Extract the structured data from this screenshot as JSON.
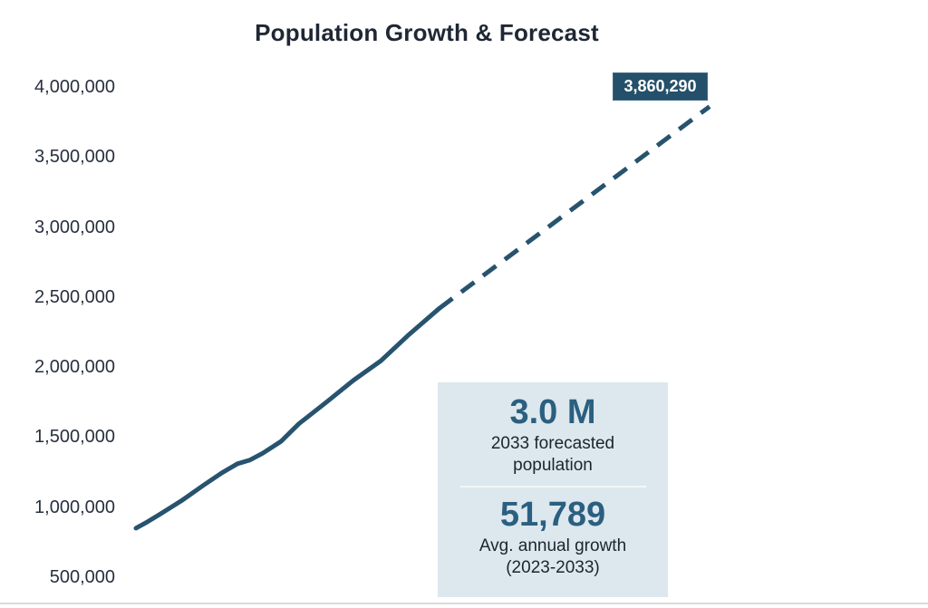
{
  "title": "Population Growth & Forecast",
  "callout": {
    "value": "3,860,290"
  },
  "stats_card": {
    "stat1_value": "3.0 M",
    "stat1_label": "2033 forecasted population",
    "stat2_value": "51,789",
    "stat2_label": "Avg. annual growth (2023-2033)"
  },
  "colors": {
    "line": "#27536e",
    "callout_bg": "#25506b",
    "stat_value": "#2b5f80",
    "card_bg": "#dce8ee",
    "title_text": "#1f2734",
    "axis_text": "#28303f",
    "baseline": "#dadada"
  },
  "chart_data": {
    "type": "line",
    "title": "Population Growth & Forecast",
    "xlabel": "",
    "ylabel": "",
    "ylim": [
      500000,
      4000000
    ],
    "grid": false,
    "legend": "none",
    "yticks": [
      4000000,
      3500000,
      3000000,
      2500000,
      2000000,
      1500000,
      1000000,
      500000
    ],
    "ytick_labels": [
      "4,000,000",
      "3,500,000",
      "3,000,000",
      "2,500,000",
      "2,000,000",
      "1,500,000",
      "1,000,000",
      "500,000"
    ],
    "series": [
      {
        "name": "historical",
        "style": "solid",
        "points": [
          [
            0.0,
            850000
          ],
          [
            0.02,
            895000
          ],
          [
            0.04,
            945000
          ],
          [
            0.079,
            1045000
          ],
          [
            0.119,
            1160000
          ],
          [
            0.15,
            1245000
          ],
          [
            0.177,
            1310000
          ],
          [
            0.198,
            1335000
          ],
          [
            0.221,
            1385000
          ],
          [
            0.253,
            1470000
          ],
          [
            0.284,
            1595000
          ],
          [
            0.332,
            1750000
          ],
          [
            0.379,
            1905000
          ],
          [
            0.427,
            2045000
          ],
          [
            0.474,
            2225000
          ],
          [
            0.529,
            2420000
          ]
        ]
      },
      {
        "name": "forecast",
        "style": "dashed",
        "points": [
          [
            0.529,
            2420000
          ],
          [
            1.0,
            3860290
          ]
        ]
      }
    ],
    "end_point_label": "3,860,290",
    "annotations": [
      "3.0 M — 2033 forecasted population",
      "51,789 — Avg. annual growth (2023-2033)"
    ]
  }
}
